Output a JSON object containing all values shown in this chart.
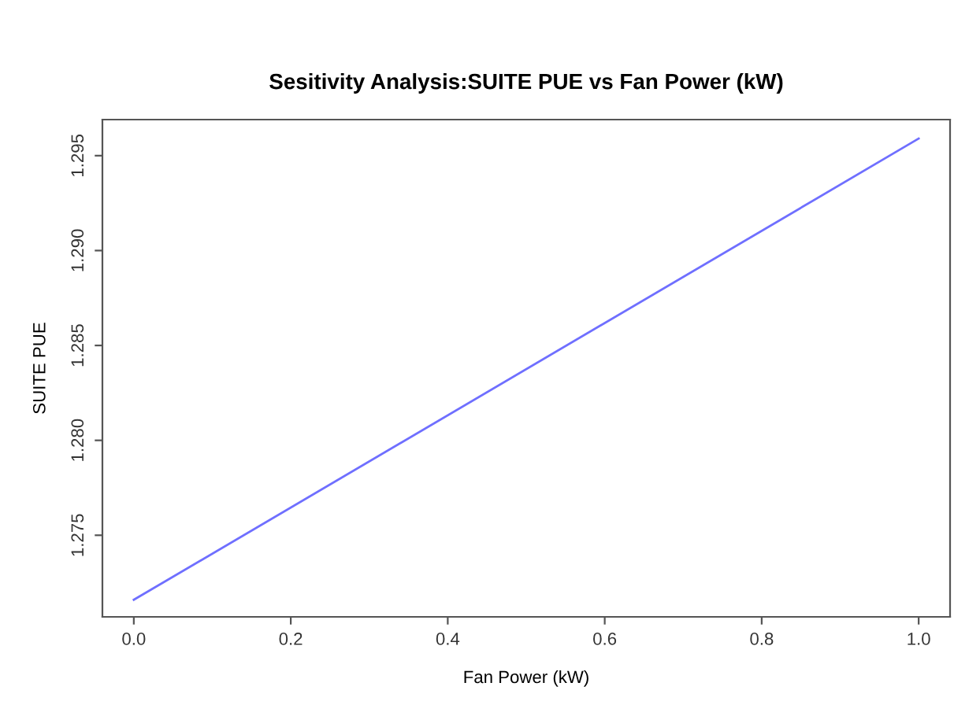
{
  "chart_data": {
    "type": "line",
    "title": "Sesitivity Analysis:SUITE PUE vs Fan Power (kW)",
    "xlabel": "Fan Power (kW)",
    "ylabel": "SUITE PUE",
    "x": [
      0,
      1
    ],
    "series": [
      {
        "color": "#6f6fff",
        "values": [
          1.2716,
          1.2959
        ]
      }
    ],
    "xlim": [
      -0.04,
      1.04
    ],
    "xticks": [
      {
        "value": 0,
        "label": "0.0"
      },
      0.2,
      0.4,
      0.6,
      0.8,
      {
        "value": 1,
        "label": "1.0"
      }
    ],
    "ylim": [
      1.2707,
      1.2969
    ],
    "yticks": [
      1.275,
      {
        "value": 1.28,
        "label": "1.280"
      },
      1.285,
      {
        "value": 1.29,
        "label": "1.290"
      },
      1.295
    ],
    "grid": false,
    "legend": false
  }
}
